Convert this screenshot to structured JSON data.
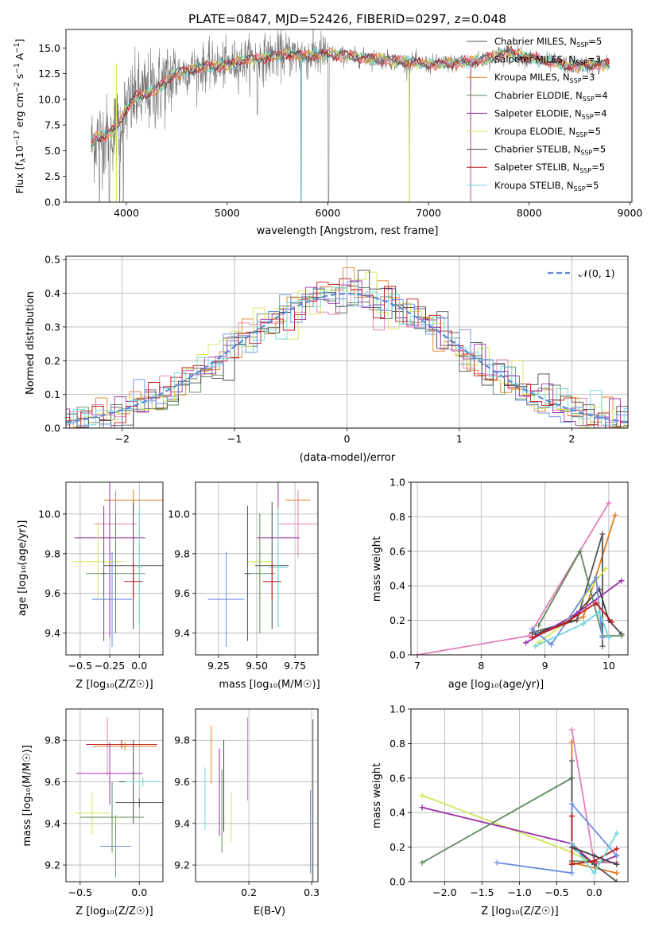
{
  "colors": {
    "grid": "#b0b0b0",
    "axis": "#000000",
    "normal_line": "#5b8bd9"
  },
  "series_labels": [
    {
      "name": "Chabrier MILES",
      "nssp": "5",
      "color": "#555555"
    },
    {
      "name": "Salpeter MILES",
      "nssp": "3",
      "color": "#e37fb6"
    },
    {
      "name": "Kroupa MILES",
      "nssp": "3",
      "color": "#e07b20"
    },
    {
      "name": "Chabrier ELODIE",
      "nssp": "4",
      "color": "#5e8a5e"
    },
    {
      "name": "Salpeter ELODIE",
      "nssp": "4",
      "color": "#9a2fa6"
    },
    {
      "name": "Kroupa ELODIE",
      "nssp": "5",
      "color": "#d4e65a"
    },
    {
      "name": "Chabrier STELIB",
      "nssp": "5",
      "color": "#444444"
    },
    {
      "name": "Salpeter STELIB",
      "nssp": "5",
      "color": "#c01818"
    },
    {
      "name": "Kroupa STELIB",
      "nssp": "5",
      "color": "#6fd6dc"
    }
  ],
  "chart_data": [
    {
      "id": "spectrum",
      "type": "line",
      "title": "PLATE=0847, MJD=52426, FIBERID=0297, z=0.048",
      "xlabel": "wavelength [Angstrom, rest frame]",
      "ylabel_main": "Flux [f",
      "ylabel_sub1": "λ",
      "ylabel_mid": "10",
      "ylabel_sup1": "−17",
      "ylabel_rest": " erg cm",
      "ylabel_sup2": "−2",
      "ylabel_s": " s",
      "ylabel_sup3": "−1",
      "ylabel_a": " A",
      "ylabel_sup4": "−1",
      "ylabel_end": "]",
      "xlim": [
        3400,
        9020
      ],
      "ylim": [
        0,
        16.8
      ],
      "xticks": [
        4000,
        5000,
        6000,
        7000,
        8000,
        9000
      ],
      "yticks": [
        0.0,
        2.5,
        5.0,
        7.5,
        10.0,
        12.5,
        15.0
      ],
      "ytick_labels": [
        "0.0",
        "2.5",
        "5.0",
        "7.5",
        "10.0",
        "12.5",
        "15.0"
      ],
      "legend_loc": "right",
      "nssp_prefix": "N",
      "nssp_sub": "SSP",
      "continuum": [
        [
          3650,
          5.5
        ],
        [
          3700,
          6.3
        ],
        [
          3800,
          6.5
        ],
        [
          3900,
          7.2
        ],
        [
          4000,
          9.0
        ],
        [
          4100,
          10.3
        ],
        [
          4200,
          10.5
        ],
        [
          4300,
          11.0
        ],
        [
          4400,
          11.8
        ],
        [
          4500,
          12.6
        ],
        [
          4600,
          12.8
        ],
        [
          4800,
          13.2
        ],
        [
          5000,
          13.3
        ],
        [
          5200,
          13.9
        ],
        [
          5400,
          14.1
        ],
        [
          5600,
          14.4
        ],
        [
          5800,
          14.2
        ],
        [
          6000,
          14.4
        ],
        [
          6200,
          14.2
        ],
        [
          6400,
          14.0
        ],
        [
          6600,
          13.8
        ],
        [
          6800,
          13.6
        ],
        [
          7000,
          13.4
        ],
        [
          7200,
          13.5
        ],
        [
          7400,
          13.6
        ],
        [
          7600,
          14.0
        ],
        [
          7800,
          14.6
        ],
        [
          8000,
          14.0
        ],
        [
          8200,
          13.6
        ],
        [
          8400,
          13.3
        ],
        [
          8600,
          13.3
        ],
        [
          8800,
          13.4
        ]
      ],
      "dips": [
        [
          3733,
          0
        ],
        [
          3830,
          0
        ],
        [
          3934,
          0
        ],
        [
          3969,
          0
        ],
        [
          5300,
          8.5
        ],
        [
          5735,
          0
        ],
        [
          6008,
          0
        ],
        [
          6810,
          0
        ],
        [
          7420,
          0
        ]
      ]
    },
    {
      "id": "residuals",
      "type": "histogram",
      "xlabel": "(data-model)/error",
      "ylabel": "Normed distribution",
      "xlim": [
        -2.5,
        2.5
      ],
      "ylim": [
        0,
        0.51
      ],
      "xticks": [
        -2,
        -1,
        0,
        1,
        2
      ],
      "xtick_labels": [
        "−2",
        "−1",
        "0",
        "1",
        "2"
      ],
      "yticks": [
        0.0,
        0.1,
        0.2,
        0.3,
        0.4,
        0.5
      ],
      "ytick_labels": [
        "0.0",
        "0.1",
        "0.2",
        "0.3",
        "0.4",
        "0.5"
      ],
      "legend_label": "𝒩(0, 1)",
      "legend_loc": "upper right",
      "bin_width": 0.1,
      "noise_amplitude": 0.03
    },
    {
      "id": "age-vs-z",
      "type": "errorbar",
      "xlabel": "Z [log₁₀(Z/Z☉)]",
      "ylabel": "age  [log₁₀(age/yr)]",
      "xlim": [
        -0.62,
        0.2
      ],
      "ylim": [
        9.29,
        10.16
      ],
      "xticks": [
        -0.5,
        -0.25,
        0.0
      ],
      "xtick_labels": [
        "−0.5",
        "−0.25",
        "0.0"
      ],
      "yticks": [
        9.4,
        9.6,
        9.8,
        10.0
      ],
      "ytick_labels": [
        "9.4",
        "9.6",
        "9.8",
        "10.0"
      ],
      "points": [
        {
          "c": 2,
          "x": -0.05,
          "xe": 0.25,
          "y": 10.07,
          "ye": 0.05
        },
        {
          "c": 1,
          "x": -0.2,
          "xe": 0.18,
          "y": 9.95,
          "ye": 0.17
        },
        {
          "c": 4,
          "x": -0.25,
          "xe": 0.3,
          "y": 9.88,
          "ye": 0.5
        },
        {
          "c": 5,
          "x": -0.35,
          "xe": 0.22,
          "y": 9.76,
          "ye": 0.2
        },
        {
          "c": 6,
          "x": -0.05,
          "xe": 0.25,
          "y": 9.74,
          "ye": 0.32
        },
        {
          "c": 3,
          "x": -0.2,
          "xe": 0.25,
          "y": 9.7,
          "ye": 0.3
        },
        {
          "c": 8,
          "x": 0.0,
          "xe": 0.02,
          "y": 9.73,
          "ye": 0.3
        },
        {
          "c": 0,
          "x": -0.3,
          "xe": 0.02,
          "y": 9.7,
          "ye": 0.34
        },
        {
          "c": 7,
          "x": -0.05,
          "xe": 0.08,
          "y": 9.66,
          "ye": 0.09
        },
        {
          "c": 9,
          "x": -0.23,
          "xe": 0.17,
          "y": 9.57,
          "ye": 0.24
        }
      ]
    },
    {
      "id": "age-vs-mass",
      "type": "errorbar",
      "xlabel": "mass [log₁₀(M/M☉)]",
      "xlim": [
        9.1,
        9.9
      ],
      "ylim": [
        9.29,
        10.16
      ],
      "xticks": [
        9.25,
        9.5,
        9.75
      ],
      "xtick_labels": [
        "9.25",
        "9.50",
        "9.75"
      ],
      "yticks": [
        9.4,
        9.6,
        9.8,
        10.0
      ],
      "ytick_labels": [
        "9.4",
        "9.6",
        "9.8",
        "10.0"
      ],
      "points": [
        {
          "c": 2,
          "x": 9.77,
          "xe": 0.08,
          "y": 10.07,
          "ye": 0.05
        },
        {
          "c": 1,
          "x": 9.77,
          "xe": 0.13,
          "y": 9.95,
          "ye": 0.17
        },
        {
          "c": 4,
          "x": 9.64,
          "xe": 0.14,
          "y": 9.88,
          "ye": 0.45
        },
        {
          "c": 5,
          "x": 9.52,
          "xe": 0.08,
          "y": 9.76,
          "ye": 0.2
        },
        {
          "c": 6,
          "x": 9.6,
          "xe": 0.11,
          "y": 9.74,
          "ye": 0.32
        },
        {
          "c": 3,
          "x": 9.52,
          "xe": 0.1,
          "y": 9.7,
          "ye": 0.3
        },
        {
          "c": 8,
          "x": 9.64,
          "xe": 0.06,
          "y": 9.73,
          "ye": 0.3
        },
        {
          "c": 0,
          "x": 9.44,
          "xe": 0.02,
          "y": 9.7,
          "ye": 0.34
        },
        {
          "c": 7,
          "x": 9.6,
          "xe": 0.06,
          "y": 9.66,
          "ye": 0.09
        },
        {
          "c": 9,
          "x": 9.3,
          "xe": 0.12,
          "y": 9.57,
          "ye": 0.24
        }
      ]
    },
    {
      "id": "mass-weight-vs-age",
      "type": "line",
      "xlabel": "age  [log₁₀(age/yr)]",
      "ylabel": "mass weight",
      "xlim": [
        6.9,
        10.3
      ],
      "ylim": [
        0,
        1.0
      ],
      "xticks": [
        7,
        8,
        9,
        10
      ],
      "xtick_labels": [
        "7",
        "8",
        "9",
        "10"
      ],
      "yticks": [
        0.0,
        0.2,
        0.4,
        0.6,
        0.8,
        1.0
      ],
      "ytick_labels": [
        "0.0",
        "0.2",
        "0.4",
        "0.6",
        "0.8",
        "1.0"
      ],
      "series": [
        {
          "c": 1,
          "points": [
            [
              7.0,
              0.0
            ],
            [
              8.75,
              0.11
            ],
            [
              10.0,
              0.88
            ]
          ]
        },
        {
          "c": 2,
          "points": [
            [
              8.85,
              0.12
            ],
            [
              9.6,
              0.22
            ],
            [
              10.1,
              0.81
            ]
          ]
        },
        {
          "c": 0,
          "points": [
            [
              8.8,
              0.13
            ],
            [
              9.5,
              0.2
            ],
            [
              9.9,
              0.7
            ],
            [
              9.9,
              0.05
            ]
          ]
        },
        {
          "c": 6,
          "points": [
            [
              8.85,
              0.12
            ],
            [
              9.4,
              0.2
            ],
            [
              9.85,
              0.38
            ],
            [
              10.0,
              0.2
            ],
            [
              10.2,
              0.12
            ]
          ]
        },
        {
          "c": 3,
          "points": [
            [
              8.9,
              0.17
            ],
            [
              9.55,
              0.6
            ],
            [
              9.9,
              0.11
            ],
            [
              10.2,
              0.11
            ]
          ]
        },
        {
          "c": 4,
          "points": [
            [
              8.7,
              0.07
            ],
            [
              9.5,
              0.24
            ],
            [
              10.2,
              0.43
            ]
          ]
        },
        {
          "c": 5,
          "points": [
            [
              8.9,
              0.07
            ],
            [
              9.3,
              0.18
            ],
            [
              9.95,
              0.5
            ]
          ]
        },
        {
          "c": 9,
          "points": [
            [
              8.8,
              0.15
            ],
            [
              9.1,
              0.06
            ],
            [
              9.8,
              0.45
            ],
            [
              9.9,
              0.1
            ]
          ]
        },
        {
          "c": 7,
          "points": [
            [
              8.8,
              0.1
            ],
            [
              9.3,
              0.18
            ],
            [
              9.8,
              0.3
            ],
            [
              10.05,
              0.19
            ]
          ]
        },
        {
          "c": 8,
          "points": [
            [
              8.85,
              0.05
            ],
            [
              9.6,
              0.18
            ],
            [
              9.85,
              0.25
            ],
            [
              10.0,
              0.1
            ]
          ]
        }
      ]
    },
    {
      "id": "mass-vs-z",
      "type": "errorbar",
      "xlabel": "Z [log₁₀(Z/Z☉)]",
      "ylabel": "mass [log₁₀(M/M☉)]",
      "xlim": [
        -0.62,
        0.2
      ],
      "ylim": [
        9.12,
        9.95
      ],
      "xticks": [
        -0.5,
        0.0
      ],
      "xtick_labels": [
        "−0.5",
        "0.0"
      ],
      "yticks": [
        9.2,
        9.4,
        9.6,
        9.8
      ],
      "ytick_labels": [
        "9.2",
        "9.4",
        "9.6",
        "9.8"
      ],
      "points": [
        {
          "c": 1,
          "x": -0.27,
          "xe": 0.02,
          "y": 9.77,
          "ye": 0.14
        },
        {
          "c": 7,
          "x": -0.15,
          "xe": 0.3,
          "y": 9.78,
          "ye": 0.02
        },
        {
          "c": 2,
          "x": -0.12,
          "xe": 0.27,
          "y": 9.77,
          "ye": 0.02
        },
        {
          "c": 4,
          "x": -0.25,
          "xe": 0.28,
          "y": 9.64,
          "ye": 0.15
        },
        {
          "c": 6,
          "x": -0.05,
          "xe": 0.12,
          "y": 9.6,
          "ye": 0.2
        },
        {
          "c": 8,
          "x": 0.03,
          "xe": 0.15,
          "y": 9.6,
          "ye": 0.02
        },
        {
          "c": 0,
          "x": 0.0,
          "xe": 0.2,
          "y": 9.5,
          "ye": 0.02
        },
        {
          "c": 5,
          "x": -0.4,
          "xe": 0.15,
          "y": 9.45,
          "ye": 0.1
        },
        {
          "c": 3,
          "x": -0.23,
          "xe": 0.27,
          "y": 9.43,
          "ye": 0.17
        },
        {
          "c": 9,
          "x": -0.2,
          "xe": 0.13,
          "y": 9.29,
          "ye": 0.15
        }
      ]
    },
    {
      "id": "mass-vs-ebv",
      "type": "errorbar",
      "xlabel": "E(B-V)",
      "xlim": [
        0.115,
        0.31
      ],
      "ylim": [
        9.12,
        9.95
      ],
      "xticks": [
        0.2,
        0.3
      ],
      "xtick_labels": [
        "0.2",
        "0.3"
      ],
      "yticks": [
        9.2,
        9.4,
        9.6,
        9.8
      ],
      "ytick_labels": [
        "9.2",
        "9.4",
        "9.6",
        "9.8"
      ],
      "points": [
        {
          "c": 2,
          "x": 0.14,
          "xe": 0,
          "y": 9.73,
          "ye": 0.14
        },
        {
          "c": 1,
          "x": 0.198,
          "xe": 0,
          "y": 9.71,
          "ye": 0.2
        },
        {
          "c": 6,
          "x": 0.16,
          "xe": 0,
          "y": 9.58,
          "ye": 0.22
        },
        {
          "c": 4,
          "x": 0.153,
          "xe": 0,
          "y": 9.55,
          "ye": 0.21
        },
        {
          "c": 3,
          "x": 0.157,
          "xe": 0,
          "y": 9.46,
          "ye": 0.2
        },
        {
          "c": 5,
          "x": 0.172,
          "xe": 0,
          "y": 9.43,
          "ye": 0.12
        },
        {
          "c": 8,
          "x": 0.13,
          "xe": 0,
          "y": 9.52,
          "ye": 0.15
        },
        {
          "c": 9,
          "x": 0.298,
          "xe": 0,
          "y": 9.36,
          "ye": 0.2
        },
        {
          "c": 0,
          "x": 0.302,
          "xe": 0,
          "y": 9.5,
          "ye": 0.4
        }
      ]
    },
    {
      "id": "mass-weight-vs-z",
      "type": "line",
      "xlabel": "Z [log₁₀(Z/Z☉)]",
      "ylabel": "mass weight",
      "xlim": [
        -2.45,
        0.45
      ],
      "ylim": [
        0,
        1.0
      ],
      "xticks": [
        -2.0,
        -1.5,
        -1.0,
        -0.5,
        0.0
      ],
      "xtick_labels": [
        "−2.0",
        "−1.5",
        "−1.0",
        "−0.5",
        "0.0"
      ],
      "yticks": [
        0.0,
        0.2,
        0.4,
        0.6,
        0.8,
        1.0
      ],
      "ytick_labels": [
        "0.0",
        "0.2",
        "0.4",
        "0.6",
        "0.8",
        "1.0"
      ],
      "series": [
        {
          "c": 5,
          "points": [
            [
              -2.3,
              0.5
            ],
            [
              -0.3,
              0.17
            ],
            [
              0.0,
              0.1
            ],
            [
              0.3,
              0.15
            ]
          ]
        },
        {
          "c": 4,
          "points": [
            [
              -2.3,
              0.43
            ],
            [
              -0.3,
              0.22
            ],
            [
              0.0,
              0.1
            ],
            [
              0.3,
              0.15
            ]
          ]
        },
        {
          "c": 3,
          "points": [
            [
              -2.3,
              0.11
            ],
            [
              -0.3,
              0.6
            ],
            [
              -0.3,
              0.12
            ],
            [
              0.3,
              0.11
            ]
          ]
        },
        {
          "c": 1,
          "points": [
            [
              -0.3,
              0.88
            ],
            [
              0.0,
              0.11
            ],
            [
              0.3,
              0.11
            ]
          ]
        },
        {
          "c": 2,
          "points": [
            [
              -0.3,
              0.81
            ],
            [
              -0.3,
              0.11
            ],
            [
              0.3,
              0.05
            ]
          ]
        },
        {
          "c": 0,
          "points": [
            [
              -0.3,
              0.7
            ],
            [
              -0.3,
              0.2
            ],
            [
              0.0,
              0.1
            ],
            [
              0.3,
              0.0
            ]
          ]
        },
        {
          "c": 9,
          "points": [
            [
              -1.3,
              0.11
            ],
            [
              -0.3,
              0.05
            ],
            [
              -0.3,
              0.45
            ],
            [
              0.3,
              0.15
            ]
          ]
        },
        {
          "c": 7,
          "points": [
            [
              -0.3,
              0.38
            ],
            [
              -0.3,
              0.1
            ],
            [
              0.0,
              0.12
            ],
            [
              0.3,
              0.19
            ]
          ]
        },
        {
          "c": 8,
          "points": [
            [
              -0.3,
              0.22
            ],
            [
              0.0,
              0.05
            ],
            [
              0.3,
              0.28
            ]
          ]
        },
        {
          "c": 6,
          "points": [
            [
              -0.3,
              0.2
            ],
            [
              0.0,
              0.15
            ],
            [
              0.3,
              0.1
            ]
          ]
        }
      ]
    }
  ]
}
